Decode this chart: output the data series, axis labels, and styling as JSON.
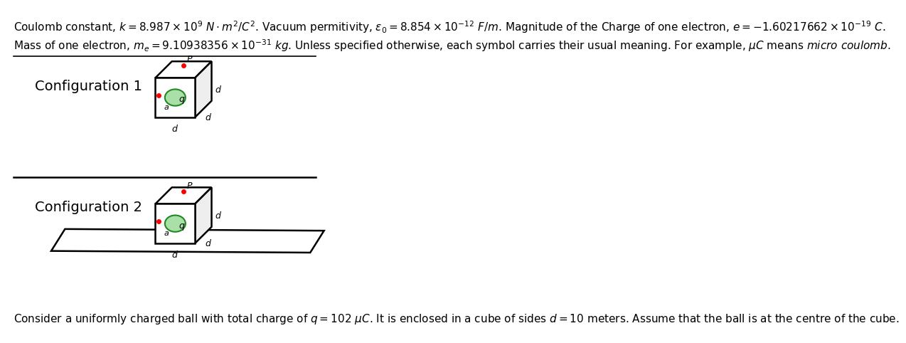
{
  "bg_color": "#ffffff",
  "header_line1": "Coulomb constant, $k = 8.987 \\times 10^9 \\ N \\cdot m^2/C^2$. Vacuum permitivity, $\\epsilon_0 = 8.854 \\times 10^{-12} \\ F/m$. Magnitude of the Charge of one electron, $e = -1.60217662 \\times 10^{-19} \\ C$.",
  "header_line2": "Mass of one electron, $m_e = 9.10938356 \\times 10^{-31}$ $kg$. Unless specified otherwise, each symbol carries their usual meaning. For example, $\\mu C$ means $\\mathit{micro\\ coulomb}$.",
  "footer_text": "Consider a uniformly charged ball with total charge of $q = 102\\ \\mu C$. It is enclosed in a cube of sides $d = 10$ meters. Assume that the ball is at the centre of the cube.",
  "font_size_header": 11.0,
  "font_size_footer": 11.0
}
